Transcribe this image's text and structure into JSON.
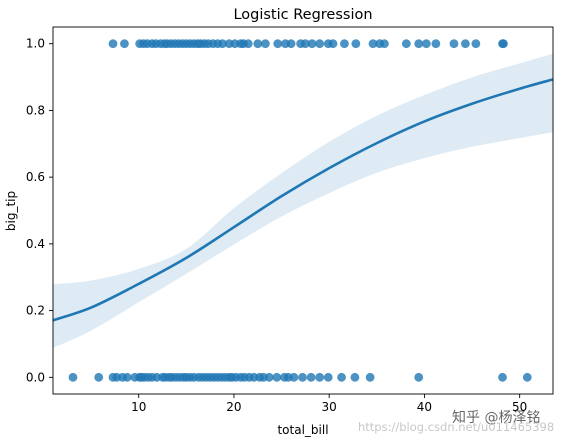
{
  "chart_data": {
    "type": "scatter",
    "title": "Logistic Regression",
    "xlabel": "total_bill",
    "ylabel": "big_tip",
    "xlim": [
      1,
      53.5
    ],
    "ylim": [
      -0.05,
      1.05
    ],
    "xticks": [
      10,
      20,
      30,
      40,
      50
    ],
    "yticks": [
      0.0,
      0.2,
      0.4,
      0.6,
      0.8,
      1.0
    ],
    "ytick_labels": [
      "0.0",
      "0.2",
      "0.4",
      "0.6",
      "0.8",
      "1.0"
    ],
    "grid": false,
    "colors": {
      "points": "#1f77b4",
      "line": "#1f77b4",
      "band": "#1f77b4"
    },
    "points_y1": [
      7.3,
      8.5,
      10.1,
      10.5,
      10.9,
      11.4,
      11.8,
      12.3,
      12.7,
      13.0,
      13.4,
      13.8,
      14.2,
      14.6,
      15.0,
      15.4,
      15.8,
      16.2,
      16.5,
      16.9,
      17.3,
      17.8,
      18.3,
      18.8,
      19.5,
      20.1,
      20.7,
      21.0,
      21.5,
      22.5,
      23.3,
      24.6,
      25.4,
      26.0,
      27.0,
      27.5,
      28.2,
      29.0,
      29.9,
      30.4,
      31.6,
      32.8,
      34.6,
      35.3,
      35.8,
      38.1,
      39.4,
      40.2,
      41.2,
      43.1,
      44.3,
      45.4,
      48.2,
      48.3
    ],
    "points_y0": [
      3.1,
      5.8,
      7.3,
      7.7,
      8.3,
      8.8,
      9.6,
      10.1,
      10.3,
      10.6,
      11.0,
      11.4,
      11.9,
      12.5,
      12.8,
      13.2,
      13.5,
      13.9,
      14.3,
      14.7,
      15.0,
      15.4,
      15.8,
      16.3,
      16.7,
      17.1,
      17.5,
      17.9,
      18.3,
      18.7,
      19.1,
      19.5,
      19.8,
      20.2,
      20.7,
      21.1,
      21.6,
      22.1,
      22.7,
      23.1,
      23.7,
      24.5,
      25.3,
      25.7,
      26.3,
      27.2,
      28.1,
      29.0,
      29.9,
      31.3,
      32.7,
      34.3,
      39.4,
      48.2,
      50.8
    ],
    "curve": {
      "x": [
        1,
        5,
        10,
        15,
        20,
        25,
        30,
        35,
        40,
        45,
        50,
        53.5
      ],
      "y": [
        0.171,
        0.209,
        0.28,
        0.358,
        0.45,
        0.543,
        0.627,
        0.702,
        0.767,
        0.82,
        0.865,
        0.893
      ],
      "lower": [
        0.088,
        0.14,
        0.225,
        0.31,
        0.398,
        0.482,
        0.552,
        0.613,
        0.657,
        0.691,
        0.717,
        0.735
      ],
      "upper": [
        0.279,
        0.29,
        0.325,
        0.385,
        0.507,
        0.612,
        0.706,
        0.784,
        0.846,
        0.899,
        0.941,
        0.97
      ]
    }
  },
  "watermark": {
    "text1": "知乎 @杨泽铭",
    "text2": "https://blog.csdn.net/u011465398"
  }
}
